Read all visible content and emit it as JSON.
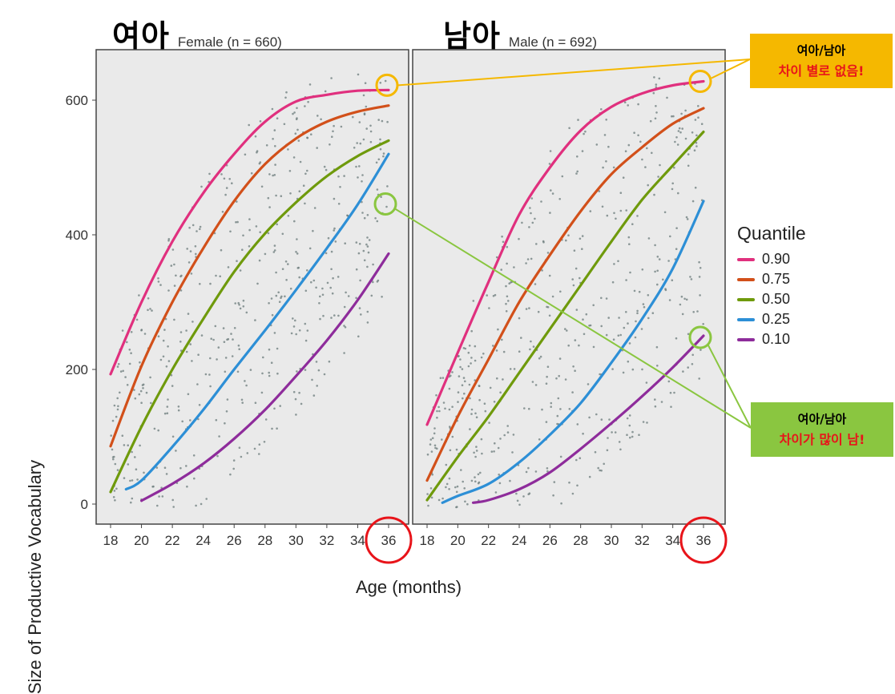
{
  "panels": {
    "female": {
      "title_ko": "여아",
      "title_en": "Female (n = 660)"
    },
    "male": {
      "title_ko": "남아",
      "title_en": "Male (n = 692)"
    }
  },
  "legend": {
    "title": "Quantile",
    "items": [
      {
        "label": "0.90",
        "color": "#e0307e"
      },
      {
        "label": "0.75",
        "color": "#d2501a"
      },
      {
        "label": "0.50",
        "color": "#6f9a0c"
      },
      {
        "label": "0.25",
        "color": "#2d8fd6"
      },
      {
        "label": "0.10",
        "color": "#8e2c9b"
      }
    ]
  },
  "callouts": {
    "top": {
      "line1": "여아/남아",
      "line2": "차이 별로 없음!",
      "bg": "#f5b800"
    },
    "bottom": {
      "line1": "여아/남아",
      "line2": "차이가 많이 남!",
      "bg": "#8ac640"
    }
  },
  "chart_data": [
    {
      "type": "line",
      "panel": "female",
      "title": "Female (n = 660)",
      "xlabel": "Age (months)",
      "ylabel": "Size of Productive Vocabulary",
      "xlim": [
        17.5,
        37.2
      ],
      "ylim": [
        -30,
        670
      ],
      "x_ticks": [
        18,
        20,
        22,
        24,
        26,
        28,
        30,
        32,
        34,
        36
      ],
      "y_ticks": [
        0,
        200,
        400,
        600
      ],
      "grid": false,
      "series": [
        {
          "name": "0.90",
          "x": [
            18,
            20,
            22,
            24,
            26,
            28,
            30,
            32,
            34,
            36
          ],
          "y": [
            193,
            300,
            390,
            462,
            520,
            568,
            598,
            608,
            614,
            615
          ]
        },
        {
          "name": "0.75",
          "x": [
            18,
            20,
            22,
            24,
            26,
            28,
            30,
            32,
            34,
            36
          ],
          "y": [
            86,
            205,
            300,
            380,
            450,
            505,
            543,
            568,
            583,
            592
          ]
        },
        {
          "name": "0.50",
          "x": [
            18,
            20,
            22,
            24,
            26,
            28,
            30,
            32,
            34,
            36
          ],
          "y": [
            18,
            115,
            200,
            275,
            345,
            402,
            448,
            487,
            517,
            540
          ]
        },
        {
          "name": "0.25",
          "x": [
            19,
            20,
            22,
            24,
            26,
            28,
            30,
            32,
            34,
            36
          ],
          "y": [
            22,
            35,
            85,
            140,
            200,
            258,
            318,
            380,
            445,
            520
          ]
        },
        {
          "name": "0.10",
          "x": [
            20,
            22,
            24,
            26,
            28,
            30,
            32,
            34,
            36
          ],
          "y": [
            5,
            30,
            60,
            97,
            140,
            190,
            243,
            303,
            372
          ]
        }
      ]
    },
    {
      "type": "line",
      "panel": "male",
      "title": "Male (n = 692)",
      "xlabel": "Age (months)",
      "xlim": [
        17.5,
        37.2
      ],
      "ylim": [
        -30,
        670
      ],
      "x_ticks": [
        18,
        20,
        22,
        24,
        26,
        28,
        30,
        32,
        34,
        36
      ],
      "y_ticks": [
        0,
        200,
        400,
        600
      ],
      "grid": false,
      "series": [
        {
          "name": "0.90",
          "x": [
            18,
            20,
            22,
            24,
            26,
            28,
            30,
            32,
            34,
            36
          ],
          "y": [
            118,
            225,
            330,
            430,
            500,
            555,
            590,
            610,
            622,
            628
          ]
        },
        {
          "name": "0.75",
          "x": [
            18,
            20,
            22,
            24,
            26,
            28,
            30,
            32,
            34,
            36
          ],
          "y": [
            35,
            130,
            215,
            300,
            370,
            435,
            490,
            530,
            565,
            588
          ]
        },
        {
          "name": "0.50",
          "x": [
            18,
            20,
            22,
            24,
            26,
            28,
            30,
            32,
            34,
            36
          ],
          "y": [
            6,
            70,
            130,
            195,
            260,
            325,
            390,
            452,
            503,
            553
          ]
        },
        {
          "name": "0.25",
          "x": [
            19,
            20,
            22,
            24,
            26,
            28,
            30,
            32,
            34,
            36
          ],
          "y": [
            2,
            12,
            30,
            62,
            103,
            150,
            210,
            275,
            350,
            450
          ]
        },
        {
          "name": "0.10",
          "x": [
            21,
            22,
            24,
            26,
            28,
            30,
            32,
            34,
            36
          ],
          "y": [
            2,
            6,
            22,
            47,
            82,
            120,
            160,
            203,
            250
          ]
        }
      ]
    }
  ],
  "axis": {
    "y_title": "Size of Productive Vocabulary",
    "x_title": "Age (months)"
  },
  "colors": {
    "panel_bg": "#eaeaea",
    "panel_border": "#444444",
    "scatter": "#6b7b7b",
    "highlight_red": "#e8141a",
    "highlight_yellow": "#f5b800",
    "highlight_green": "#8ac640"
  }
}
